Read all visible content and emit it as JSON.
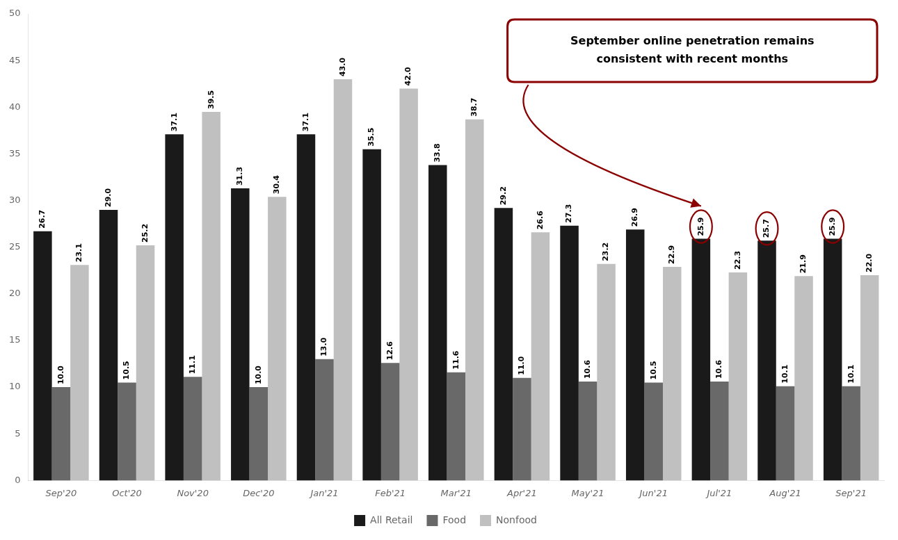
{
  "chart_data": {
    "type": "bar",
    "categories": [
      "Sep'20",
      "Oct'20",
      "Nov'20",
      "Dec'20",
      "Jan'21",
      "Feb'21",
      "Mar'21",
      "Apr'21",
      "May'21",
      "Jun'21",
      "Jul'21",
      "Aug'21",
      "Sep'21"
    ],
    "series": [
      {
        "name": "All Retail",
        "color": "#1a1a1a",
        "values": [
          26.7,
          29.0,
          37.1,
          31.3,
          37.1,
          35.5,
          33.8,
          29.2,
          27.3,
          26.9,
          25.9,
          25.7,
          25.9
        ],
        "value_labels": [
          "26.7",
          "29.0",
          "37.1",
          "31.3",
          "37.1",
          "35.5",
          "33.8",
          "29.2",
          "27.3",
          "26.9",
          "25.9",
          "25.7",
          "25.9"
        ]
      },
      {
        "name": "Food",
        "color": "#696969",
        "values": [
          10.0,
          10.5,
          11.1,
          10.0,
          13.0,
          12.6,
          11.6,
          11.0,
          10.6,
          10.5,
          10.6,
          10.1,
          10.1
        ],
        "value_labels": [
          "10.0",
          "10.5",
          "11.1",
          "10.0",
          "13.0",
          "12.6",
          "11.6",
          "11.0",
          "10.6",
          "10.5",
          "10.6",
          "10.1",
          "10.1"
        ]
      },
      {
        "name": "Nonfood",
        "color": "#c0c0c0",
        "values": [
          23.1,
          25.2,
          39.5,
          30.4,
          43.0,
          42.0,
          38.7,
          26.6,
          23.2,
          22.9,
          22.3,
          21.9,
          22.0
        ],
        "value_labels": [
          "23.1",
          "25.2",
          "39.5",
          "30.4",
          "43.0",
          "42.0",
          "38.7",
          "26.6",
          "23.2",
          "22.9",
          "22.3",
          "21.9",
          "22.0"
        ]
      }
    ],
    "ylim": [
      0,
      50
    ],
    "yticks": [
      0,
      5,
      10,
      15,
      20,
      25,
      30,
      35,
      40,
      45,
      50
    ],
    "grid": false,
    "legend": "bottom",
    "data_labels": true,
    "annotations": [
      {
        "text": "September online penetration remains\nconsistent with recent months",
        "color": "#8b0000",
        "categories": [
          "Jul'21",
          "Aug'21",
          "Sep'21"
        ]
      }
    ]
  }
}
